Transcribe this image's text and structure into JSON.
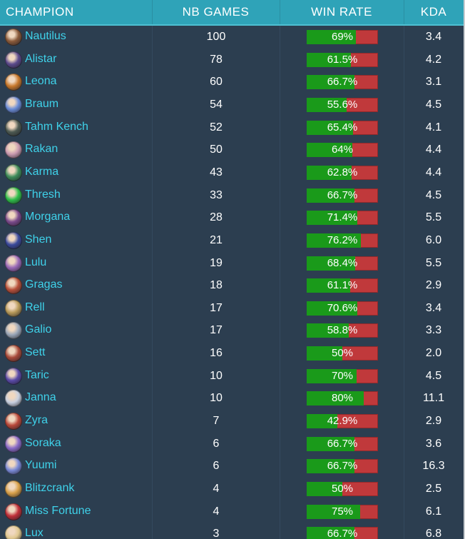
{
  "header": {
    "champion": "CHAMPION",
    "games": "NB GAMES",
    "winrate": "WIN RATE",
    "kda": "KDA"
  },
  "colors": {
    "win": "#1a9a1a",
    "loss": "#c0393b",
    "name": "#3fd2ea",
    "header": "#2fa3b8"
  },
  "rows": [
    {
      "champion": "Nautilus",
      "games": "100",
      "winrate_label": "69%",
      "winrate": 0.69,
      "kda": "3.4",
      "avatar_color": "#8a5a3a"
    },
    {
      "champion": "Alistar",
      "games": "78",
      "winrate_label": "61.5%",
      "winrate": 0.615,
      "kda": "4.2",
      "avatar_color": "#5b4a8c"
    },
    {
      "champion": "Leona",
      "games": "60",
      "winrate_label": "66.7%",
      "winrate": 0.667,
      "kda": "3.1",
      "avatar_color": "#c7782c"
    },
    {
      "champion": "Braum",
      "games": "54",
      "winrate_label": "55.6%",
      "winrate": 0.556,
      "kda": "4.5",
      "avatar_color": "#6a8cd8"
    },
    {
      "champion": "Tahm Kench",
      "games": "52",
      "winrate_label": "65.4%",
      "winrate": 0.654,
      "kda": "4.1",
      "avatar_color": "#4d5a52"
    },
    {
      "champion": "Rakan",
      "games": "50",
      "winrate_label": "64%",
      "winrate": 0.64,
      "kda": "4.4",
      "avatar_color": "#c99ab0"
    },
    {
      "champion": "Karma",
      "games": "43",
      "winrate_label": "62.8%",
      "winrate": 0.628,
      "kda": "4.4",
      "avatar_color": "#3e8c5a"
    },
    {
      "champion": "Thresh",
      "games": "33",
      "winrate_label": "66.7%",
      "winrate": 0.667,
      "kda": "4.5",
      "avatar_color": "#2fbf4a"
    },
    {
      "champion": "Morgana",
      "games": "28",
      "winrate_label": "71.4%",
      "winrate": 0.714,
      "kda": "5.5",
      "avatar_color": "#7a4a8c"
    },
    {
      "champion": "Shen",
      "games": "21",
      "winrate_label": "76.2%",
      "winrate": 0.762,
      "kda": "6.0",
      "avatar_color": "#3a4a9c"
    },
    {
      "champion": "Lulu",
      "games": "19",
      "winrate_label": "68.4%",
      "winrate": 0.684,
      "kda": "5.5",
      "avatar_color": "#9a6ab8"
    },
    {
      "champion": "Gragas",
      "games": "18",
      "winrate_label": "61.1%",
      "winrate": 0.611,
      "kda": "2.9",
      "avatar_color": "#b8503a"
    },
    {
      "champion": "Rell",
      "games": "17",
      "winrate_label": "70.6%",
      "winrate": 0.706,
      "kda": "3.4",
      "avatar_color": "#b89a5a"
    },
    {
      "champion": "Galio",
      "games": "17",
      "winrate_label": "58.8%",
      "winrate": 0.588,
      "kda": "3.3",
      "avatar_color": "#9aa6b8"
    },
    {
      "champion": "Sett",
      "games": "16",
      "winrate_label": "50%",
      "winrate": 0.5,
      "kda": "2.0",
      "avatar_color": "#a84a3a"
    },
    {
      "champion": "Taric",
      "games": "10",
      "winrate_label": "70%",
      "winrate": 0.7,
      "kda": "4.5",
      "avatar_color": "#5a4aa8"
    },
    {
      "champion": "Janna",
      "games": "10",
      "winrate_label": "80%",
      "winrate": 0.8,
      "kda": "11.1",
      "avatar_color": "#c8d0e0"
    },
    {
      "champion": "Zyra",
      "games": "7",
      "winrate_label": "42.9%",
      "winrate": 0.429,
      "kda": "2.9",
      "avatar_color": "#b8483a"
    },
    {
      "champion": "Soraka",
      "games": "6",
      "winrate_label": "66.7%",
      "winrate": 0.667,
      "kda": "3.6",
      "avatar_color": "#8a6ac8"
    },
    {
      "champion": "Yuumi",
      "games": "6",
      "winrate_label": "66.7%",
      "winrate": 0.667,
      "kda": "16.3",
      "avatar_color": "#7a8ad8"
    },
    {
      "champion": "Blitzcrank",
      "games": "4",
      "winrate_label": "50%",
      "winrate": 0.5,
      "kda": "2.5",
      "avatar_color": "#d8a04a"
    },
    {
      "champion": "Miss Fortune",
      "games": "4",
      "winrate_label": "75%",
      "winrate": 0.75,
      "kda": "6.1",
      "avatar_color": "#c0303a"
    },
    {
      "champion": "Lux",
      "games": "3",
      "winrate_label": "66.7%",
      "winrate": 0.667,
      "kda": "6.8",
      "avatar_color": "#e0c890"
    }
  ]
}
